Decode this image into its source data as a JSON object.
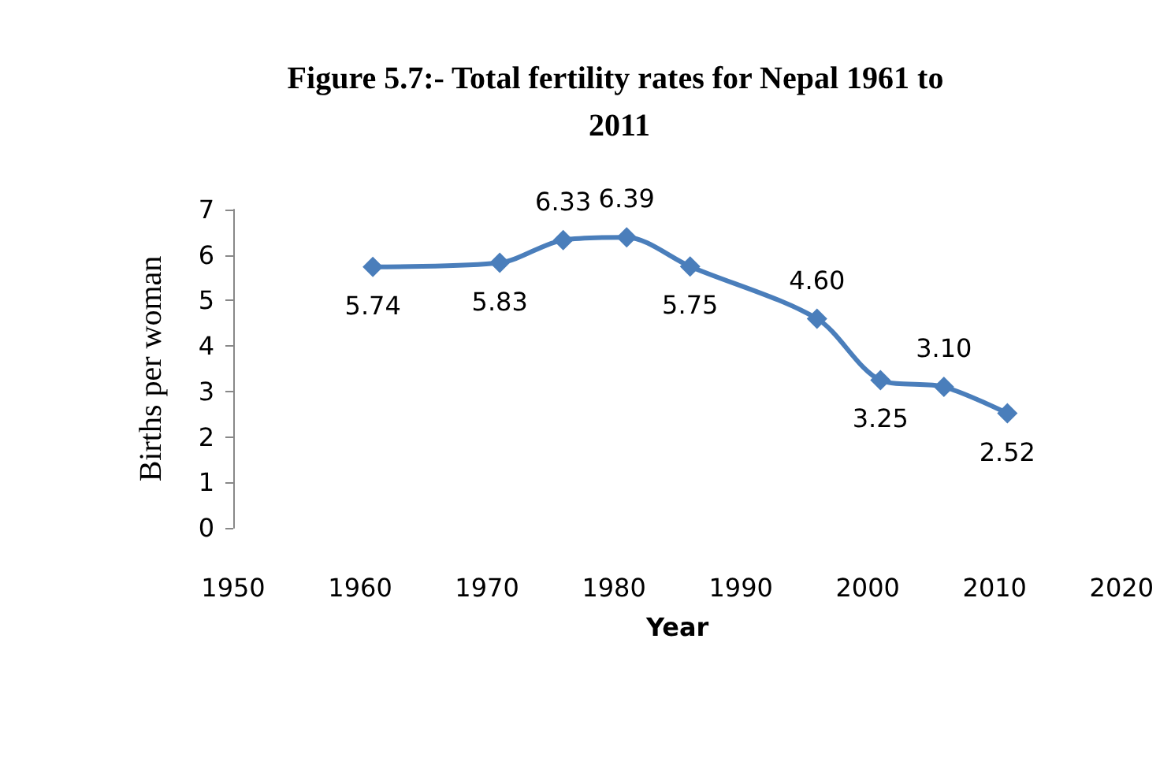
{
  "chart_data": {
    "type": "line",
    "title": "Figure 5.7:- Total fertility rates for Nepal 1961 to 2011",
    "xlabel": "Year",
    "ylabel": "Births per woman",
    "x": [
      1961,
      1971,
      1976,
      1981,
      1986,
      1996,
      2001,
      2006,
      2011
    ],
    "series": [
      {
        "color": "#4a7ebb",
        "values": [
          5.74,
          5.83,
          6.33,
          6.39,
          5.75,
          4.6,
          3.25,
          3.1,
          2.52
        ],
        "value_labels": [
          "5.74",
          "5.83",
          "6.33",
          "6.39",
          "5.75",
          "4.60",
          "3.25",
          "3.10",
          "2.52"
        ]
      }
    ],
    "xlim": [
      1950,
      2020
    ],
    "xticks": [
      1950,
      1960,
      1970,
      1980,
      1990,
      2000,
      2010,
      2020
    ],
    "ylim": [
      0,
      7
    ],
    "yticks": [
      0,
      1,
      2,
      3,
      4,
      5,
      6,
      7
    ],
    "grid": false,
    "marker": "diamond",
    "line_style": "solid"
  }
}
